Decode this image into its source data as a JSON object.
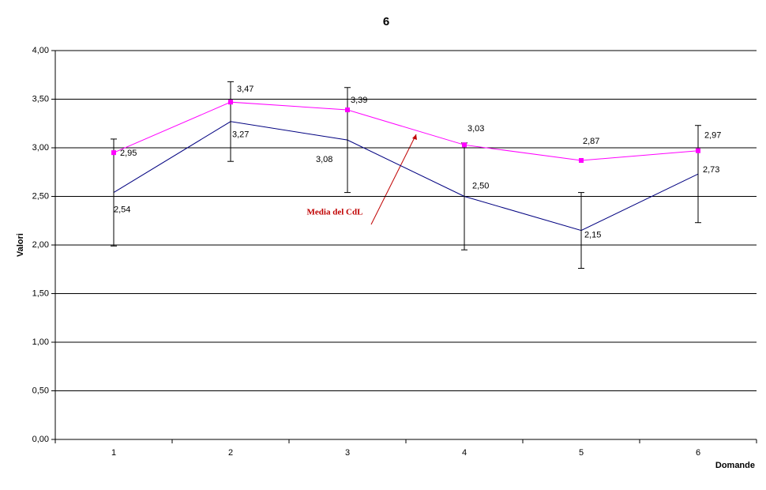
{
  "chart_data": {
    "type": "line",
    "title": "6",
    "x_label": "Domande",
    "y_label": "Valori",
    "categories": [
      "1",
      "2",
      "3",
      "4",
      "5",
      "6"
    ],
    "series": [
      {
        "color": "#000080",
        "values": [
          2.54,
          3.27,
          3.08,
          2.5,
          2.15,
          2.73
        ],
        "value_labels": [
          "2,54",
          "3,27",
          "3,08",
          "2,50",
          "2,15",
          "2,73"
        ],
        "errors": [
          0.55,
          0.41,
          0.54,
          0.55,
          0.39,
          0.5
        ]
      },
      {
        "color": "#ff00ff",
        "values": [
          2.95,
          3.47,
          3.39,
          3.03,
          2.87,
          2.97
        ],
        "value_labels": [
          "2,95",
          "3,47",
          "3,39",
          "3,03",
          "2,87",
          "2,97"
        ],
        "marker": "square"
      }
    ],
    "annotation": {
      "text": "Media del CdL",
      "color": "#c00000"
    },
    "ylim": [
      0,
      4
    ],
    "yticks": [
      {
        "value": 0,
        "label": "0,00"
      },
      {
        "value": 0.5,
        "label": "0,50"
      },
      {
        "value": 1,
        "label": "1,00"
      },
      {
        "value": 1.5,
        "label": "1,50"
      },
      {
        "value": 2,
        "label": "2,00"
      },
      {
        "value": 2.5,
        "label": "2,50"
      },
      {
        "value": 3,
        "label": "3,00"
      },
      {
        "value": 3.5,
        "label": "3,50"
      },
      {
        "value": 4,
        "label": "4,00"
      }
    ],
    "grid": true
  }
}
